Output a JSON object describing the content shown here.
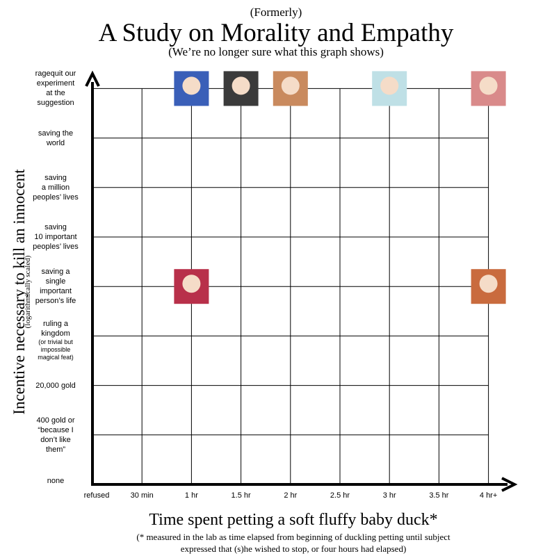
{
  "chart_data": {
    "type": "scatter",
    "pretitle": "(Formerly)",
    "title": "A Study on Morality and Empathy",
    "subtitle": "(We’re no longer sure what this graph shows)",
    "x_label": "Time spent petting a soft fluffy baby duck*",
    "footnote": "(* measured in the lab as time elapsed from beginning of duckling petting until subject\nexpressed that (s)he wished to stop, or four hours had elapsed)",
    "y_label": "Incentive necessary to kill an innocent",
    "y_label_note": "(logarithmically scaled)",
    "x_categories": [
      "refused",
      "30 min",
      "1 hr",
      "1.5 hr",
      "2 hr",
      "2.5 hr",
      "3 hr",
      "3.5 hr",
      "4 hr+"
    ],
    "y_categories": [
      "none",
      "400 gold or\n“because I\ndon’t like\nthem”",
      "20,000 gold",
      "ruling a\nkingdom",
      "saving a\nsingle\nimportant\nperson’s life",
      "saving\n10 important\npeoples’ lives",
      "saving\na million\npeoples’ lives",
      "saving the\nworld",
      "ragequit our\nexperiment\nat the\nsuggestion"
    ],
    "y_category_note": "(or trivial but\nimpossible\nmagical feat)",
    "points_x": [
      2,
      3,
      4,
      6,
      8,
      2,
      8
    ],
    "points_y": [
      8,
      8,
      8,
      8,
      8,
      4,
      4
    ],
    "point_colors": [
      "#3a5fb8",
      "#3b3b3b",
      "#c98a5e",
      "#bfe0e6",
      "#d98a8a",
      "#b8304a",
      "#c96b3e"
    ],
    "grid": true
  }
}
